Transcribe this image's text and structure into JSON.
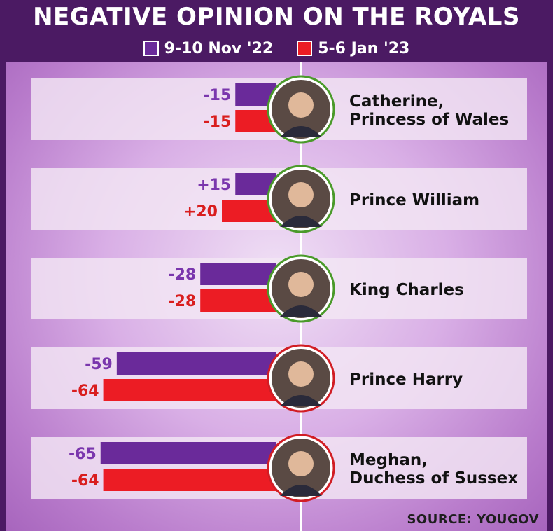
{
  "title": "NEGATIVE OPINION ON THE ROYALS",
  "source": "SOURCE: YOUGOV",
  "colors": {
    "nov": "#6a2a9a",
    "jan": "#ec1c24",
    "label_nov": "#7a36ad",
    "label_jan": "#d91e1e",
    "ring_green": "#4a9a2a",
    "ring_red": "#d11d24"
  },
  "chart_data": {
    "type": "bar",
    "orientation": "horizontal",
    "title": "NEGATIVE OPINION ON THE ROYALS",
    "categories": [
      "Catherine,\nPrincess of Wales",
      "Prince William",
      "King Charles",
      "Prince Harry",
      "Meghan,\nDuchess of Sussex"
    ],
    "series": [
      {
        "name": "9-10 Nov '22",
        "values": [
          -15,
          15,
          -28,
          -59,
          -65
        ],
        "labels": [
          "-15",
          "+15",
          "-28",
          "-59",
          "-65"
        ]
      },
      {
        "name": "5-6 Jan '23",
        "values": [
          -15,
          20,
          -28,
          -64,
          -64
        ],
        "labels": [
          "-15",
          "+20",
          "-28",
          "-64",
          "-64"
        ]
      }
    ],
    "ring_colors": [
      "green",
      "green",
      "green",
      "red",
      "red"
    ],
    "source": "SOURCE: YOUGOV"
  }
}
